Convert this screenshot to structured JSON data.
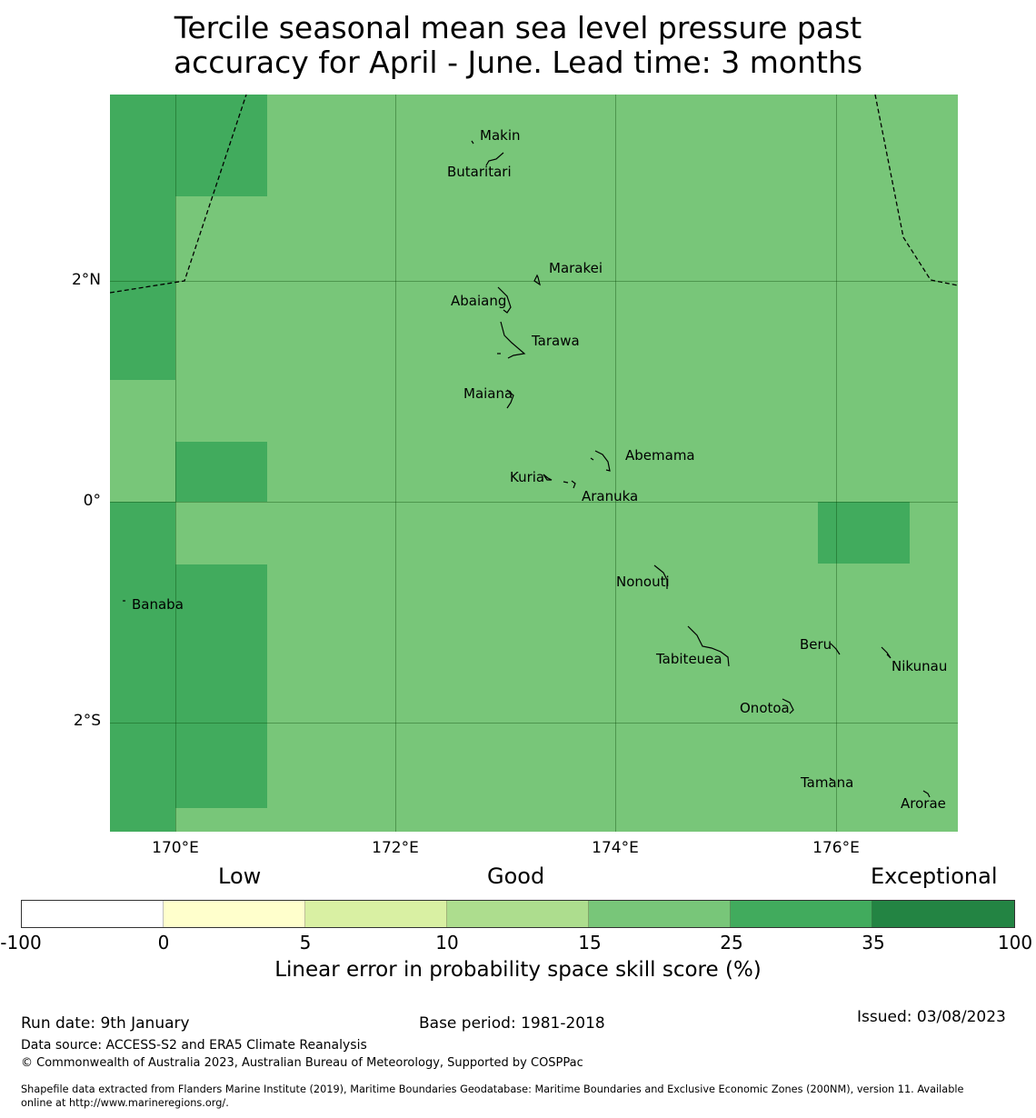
{
  "title": {
    "line1": "Tercile seasonal mean sea level pressure past",
    "line2": "accuracy for April - June. Lead time: 3 months"
  },
  "map": {
    "places": [
      {
        "id": "makin",
        "name": "Makin"
      },
      {
        "id": "butaritari",
        "name": "Butaritari"
      },
      {
        "id": "marakei",
        "name": "Marakei"
      },
      {
        "id": "abaiang",
        "name": "Abaiang"
      },
      {
        "id": "tarawa",
        "name": "Tarawa"
      },
      {
        "id": "maiana",
        "name": "Maiana"
      },
      {
        "id": "abemama",
        "name": "Abemama"
      },
      {
        "id": "kuria",
        "name": "Kuria"
      },
      {
        "id": "aranuka",
        "name": "Aranuka"
      },
      {
        "id": "nonouti",
        "name": "Nonouti"
      },
      {
        "id": "banaba",
        "name": "Banaba"
      },
      {
        "id": "beru",
        "name": "Beru"
      },
      {
        "id": "tabiteuea",
        "name": "Tabiteuea"
      },
      {
        "id": "nikunau",
        "name": "Nikunau"
      },
      {
        "id": "onotoa",
        "name": "Onotoa"
      },
      {
        "id": "tamana",
        "name": "Tamana"
      },
      {
        "id": "arorae",
        "name": "Arorae"
      }
    ],
    "lat_labels": [
      "2°N",
      "0°",
      "2°S"
    ],
    "lon_labels": [
      "170°E",
      "172°E",
      "174°E",
      "176°E"
    ]
  },
  "legend": {
    "categories": [
      "Low",
      "Good",
      "Exceptional"
    ],
    "ticks": [
      "-100",
      "0",
      "5",
      "10",
      "15",
      "25",
      "35",
      "100"
    ],
    "colors": [
      "#ffffff",
      "#ffffcc",
      "#d9f0a3",
      "#addd8e",
      "#78c679",
      "#41ab5d",
      "#238443"
    ],
    "title": "Linear error in probability space skill score (%)"
  },
  "footer": {
    "run_date": "Run date: 9th January",
    "base_period": "Base period: 1981-2018",
    "issued": "Issued: 03/08/2023",
    "data_source": "Data source: ACCESS-S2 and ERA5 Climate Reanalysis",
    "copyright": "© Commonwealth of Australia 2023, Australian Bureau of Meteorology, Supported by COSPPac",
    "shapefile_line1": "Shapefile data extracted from Flanders Marine Institute (2019), Maritime Boundaries Geodatabase: Maritime Boundaries and Exclusive Economic Zones (200NM), version 11. Available",
    "shapefile_line2": "online at http://www.marineregions.org/."
  }
}
